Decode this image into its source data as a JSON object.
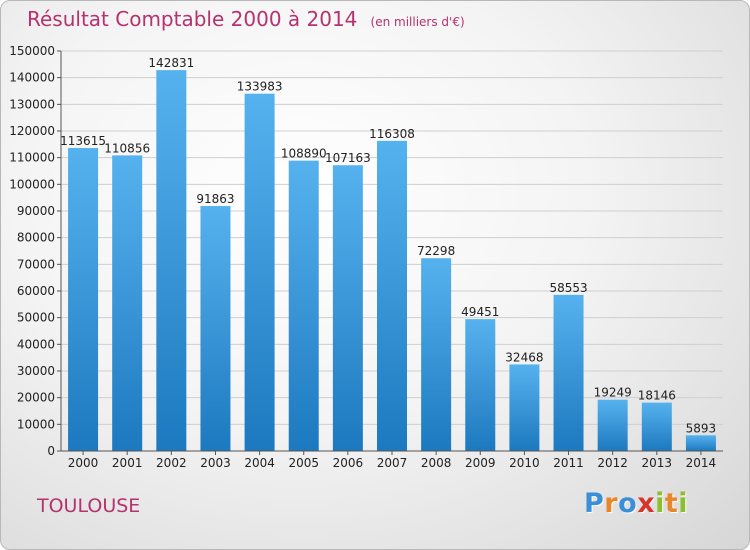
{
  "header": {
    "title": "Résultat Comptable 2000 à 2014",
    "subtitle": "(en milliers d'€)"
  },
  "footer": {
    "city": "TOULOUSE",
    "brand": "Proxiti",
    "brand_letters": [
      {
        "char": "P",
        "color": "#3a8fd6"
      },
      {
        "char": "r",
        "color": "#e8862a"
      },
      {
        "char": "o",
        "color": "#3a8fd6"
      },
      {
        "char": "x",
        "color": "#d8342c"
      },
      {
        "char": "i",
        "color": "#8cbf2f"
      },
      {
        "char": "t",
        "color": "#e8862a"
      },
      {
        "char": "i",
        "color": "#8cbf2f"
      }
    ]
  },
  "colors": {
    "title": "#b5326f",
    "bar_top": "#56b2ee",
    "bar_bottom": "#1d79bf",
    "grid": "#cfcfcf",
    "axis_text": "#222222"
  },
  "chart_data": {
    "type": "bar",
    "title": "Résultat Comptable 2000 à 2014",
    "subtitle": "(en milliers d'€)",
    "categories": [
      "2000",
      "2001",
      "2002",
      "2003",
      "2004",
      "2005",
      "2006",
      "2007",
      "2008",
      "2009",
      "2010",
      "2011",
      "2012",
      "2013",
      "2014"
    ],
    "values": [
      113615,
      110856,
      142831,
      91863,
      133983,
      108890,
      107163,
      116308,
      72298,
      49451,
      32468,
      58553,
      19249,
      18146,
      5893
    ],
    "ylim": [
      0,
      150000
    ],
    "yticks": [
      0,
      10000,
      20000,
      30000,
      40000,
      50000,
      60000,
      70000,
      80000,
      90000,
      100000,
      110000,
      120000,
      130000,
      140000,
      150000
    ],
    "grid": true,
    "data_labels": true
  }
}
